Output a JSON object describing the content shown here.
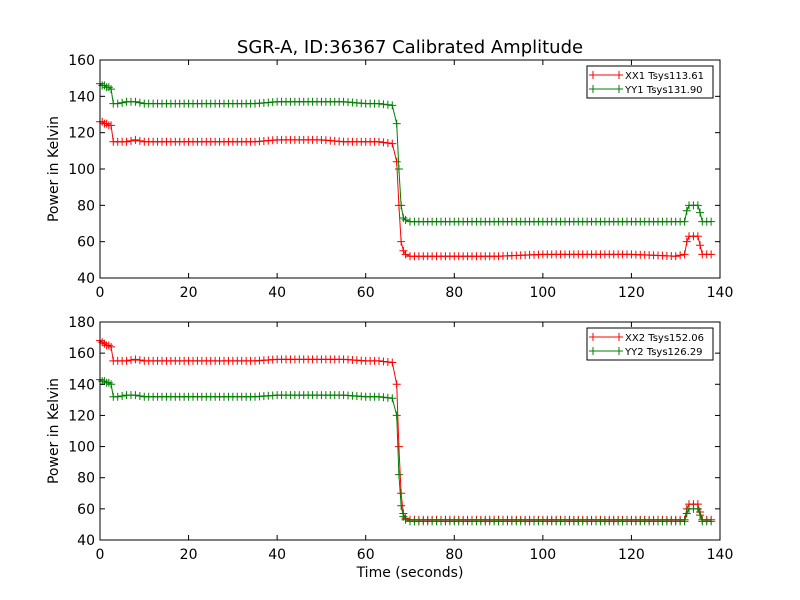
{
  "title": "SGR-A, ID:36367 Calibrated Amplitude",
  "chart_data": [
    {
      "type": "line",
      "title": "SGR-A, ID:36367 Calibrated Amplitude",
      "xlabel": "",
      "ylabel": "Power in Kelvin",
      "xlim": [
        0,
        140
      ],
      "ylim": [
        40,
        160
      ],
      "xticks": [
        0,
        20,
        40,
        60,
        80,
        100,
        120,
        140
      ],
      "yticks": [
        40,
        60,
        80,
        100,
        120,
        140,
        160
      ],
      "grid": false,
      "legend_position": "top-right",
      "marker": "+",
      "series": [
        {
          "name": "XX1 Tsys113.61",
          "color": "#ff0000",
          "x": [
            0,
            0.5,
            1,
            1.5,
            2,
            2.5,
            3,
            4,
            6,
            8,
            10,
            15,
            20,
            25,
            30,
            35,
            40,
            45,
            50,
            55,
            60,
            63,
            66,
            67,
            67.5,
            68,
            68.5,
            69,
            70,
            72,
            75,
            80,
            90,
            100,
            110,
            120,
            130,
            132,
            132.5,
            133,
            134,
            135,
            135.5,
            136,
            137,
            138
          ],
          "y": [
            126,
            126,
            125,
            125,
            124,
            124,
            115,
            115,
            115,
            116,
            115,
            115,
            115,
            115,
            115,
            115,
            116,
            116,
            116,
            115,
            115,
            115,
            114,
            104,
            80,
            60,
            55,
            53,
            52,
            52,
            52,
            52,
            52,
            53,
            53,
            53,
            52,
            53,
            60,
            63,
            63,
            63,
            58,
            53,
            53,
            53
          ]
        },
        {
          "name": "YY1 Tsys131.90",
          "color": "#007f00",
          "x": [
            0,
            0.5,
            1,
            1.5,
            2,
            2.5,
            3,
            4,
            6,
            8,
            10,
            15,
            20,
            25,
            30,
            35,
            40,
            45,
            50,
            55,
            60,
            63,
            66,
            67,
            67.5,
            68,
            68.5,
            69,
            70,
            72,
            75,
            80,
            90,
            100,
            110,
            120,
            130,
            132,
            132.5,
            133,
            134,
            135,
            135.5,
            136,
            137,
            138
          ],
          "y": [
            147,
            146,
            146,
            145,
            145,
            144,
            136,
            136,
            137,
            137,
            136,
            136,
            136,
            136,
            136,
            136,
            137,
            137,
            137,
            137,
            136,
            136,
            135,
            125,
            100,
            80,
            73,
            72,
            71,
            71,
            71,
            71,
            71,
            71,
            71,
            71,
            71,
            71,
            77,
            80,
            80,
            80,
            76,
            71,
            71,
            71
          ]
        }
      ]
    },
    {
      "type": "line",
      "title": "",
      "xlabel": "Time (seconds)",
      "ylabel": "Power in Kelvin",
      "xlim": [
        0,
        140
      ],
      "ylim": [
        40,
        180
      ],
      "xticks": [
        0,
        20,
        40,
        60,
        80,
        100,
        120,
        140
      ],
      "yticks": [
        40,
        60,
        80,
        100,
        120,
        140,
        160,
        180
      ],
      "grid": false,
      "legend_position": "top-right",
      "marker": "+",
      "series": [
        {
          "name": "XX2 Tsys152.06",
          "color": "#ff0000",
          "x": [
            0,
            0.5,
            1,
            1.5,
            2,
            2.5,
            3,
            4,
            6,
            8,
            10,
            15,
            20,
            25,
            30,
            35,
            40,
            45,
            50,
            55,
            60,
            63,
            66,
            67,
            67.5,
            68,
            68.5,
            69,
            70,
            72,
            75,
            80,
            90,
            100,
            110,
            120,
            130,
            132,
            132.5,
            133,
            134,
            135,
            135.5,
            136,
            137,
            138
          ],
          "y": [
            168,
            167,
            166,
            165,
            165,
            164,
            155,
            155,
            155,
            156,
            155,
            155,
            155,
            155,
            155,
            155,
            156,
            156,
            156,
            156,
            155,
            155,
            154,
            140,
            100,
            70,
            57,
            54,
            53,
            53,
            53,
            53,
            53,
            53,
            53,
            53,
            53,
            53,
            60,
            63,
            63,
            63,
            58,
            53,
            53,
            53
          ]
        },
        {
          "name": "YY2 Tsys126.29",
          "color": "#007f00",
          "x": [
            0,
            0.5,
            1,
            1.5,
            2,
            2.5,
            3,
            4,
            6,
            8,
            10,
            15,
            20,
            25,
            30,
            35,
            40,
            45,
            50,
            55,
            60,
            63,
            66,
            67,
            67.5,
            68,
            68.5,
            69,
            70,
            72,
            75,
            80,
            90,
            100,
            110,
            120,
            130,
            132,
            132.5,
            133,
            134,
            135,
            135.5,
            136,
            137,
            138
          ],
          "y": [
            143,
            142,
            142,
            141,
            141,
            140,
            132,
            132,
            133,
            133,
            132,
            132,
            132,
            132,
            132,
            132,
            133,
            133,
            133,
            133,
            132,
            132,
            131,
            120,
            82,
            62,
            55,
            53,
            52,
            52,
            52,
            52,
            52,
            52,
            52,
            52,
            52,
            52,
            57,
            60,
            60,
            60,
            56,
            52,
            52,
            52
          ]
        }
      ]
    }
  ]
}
